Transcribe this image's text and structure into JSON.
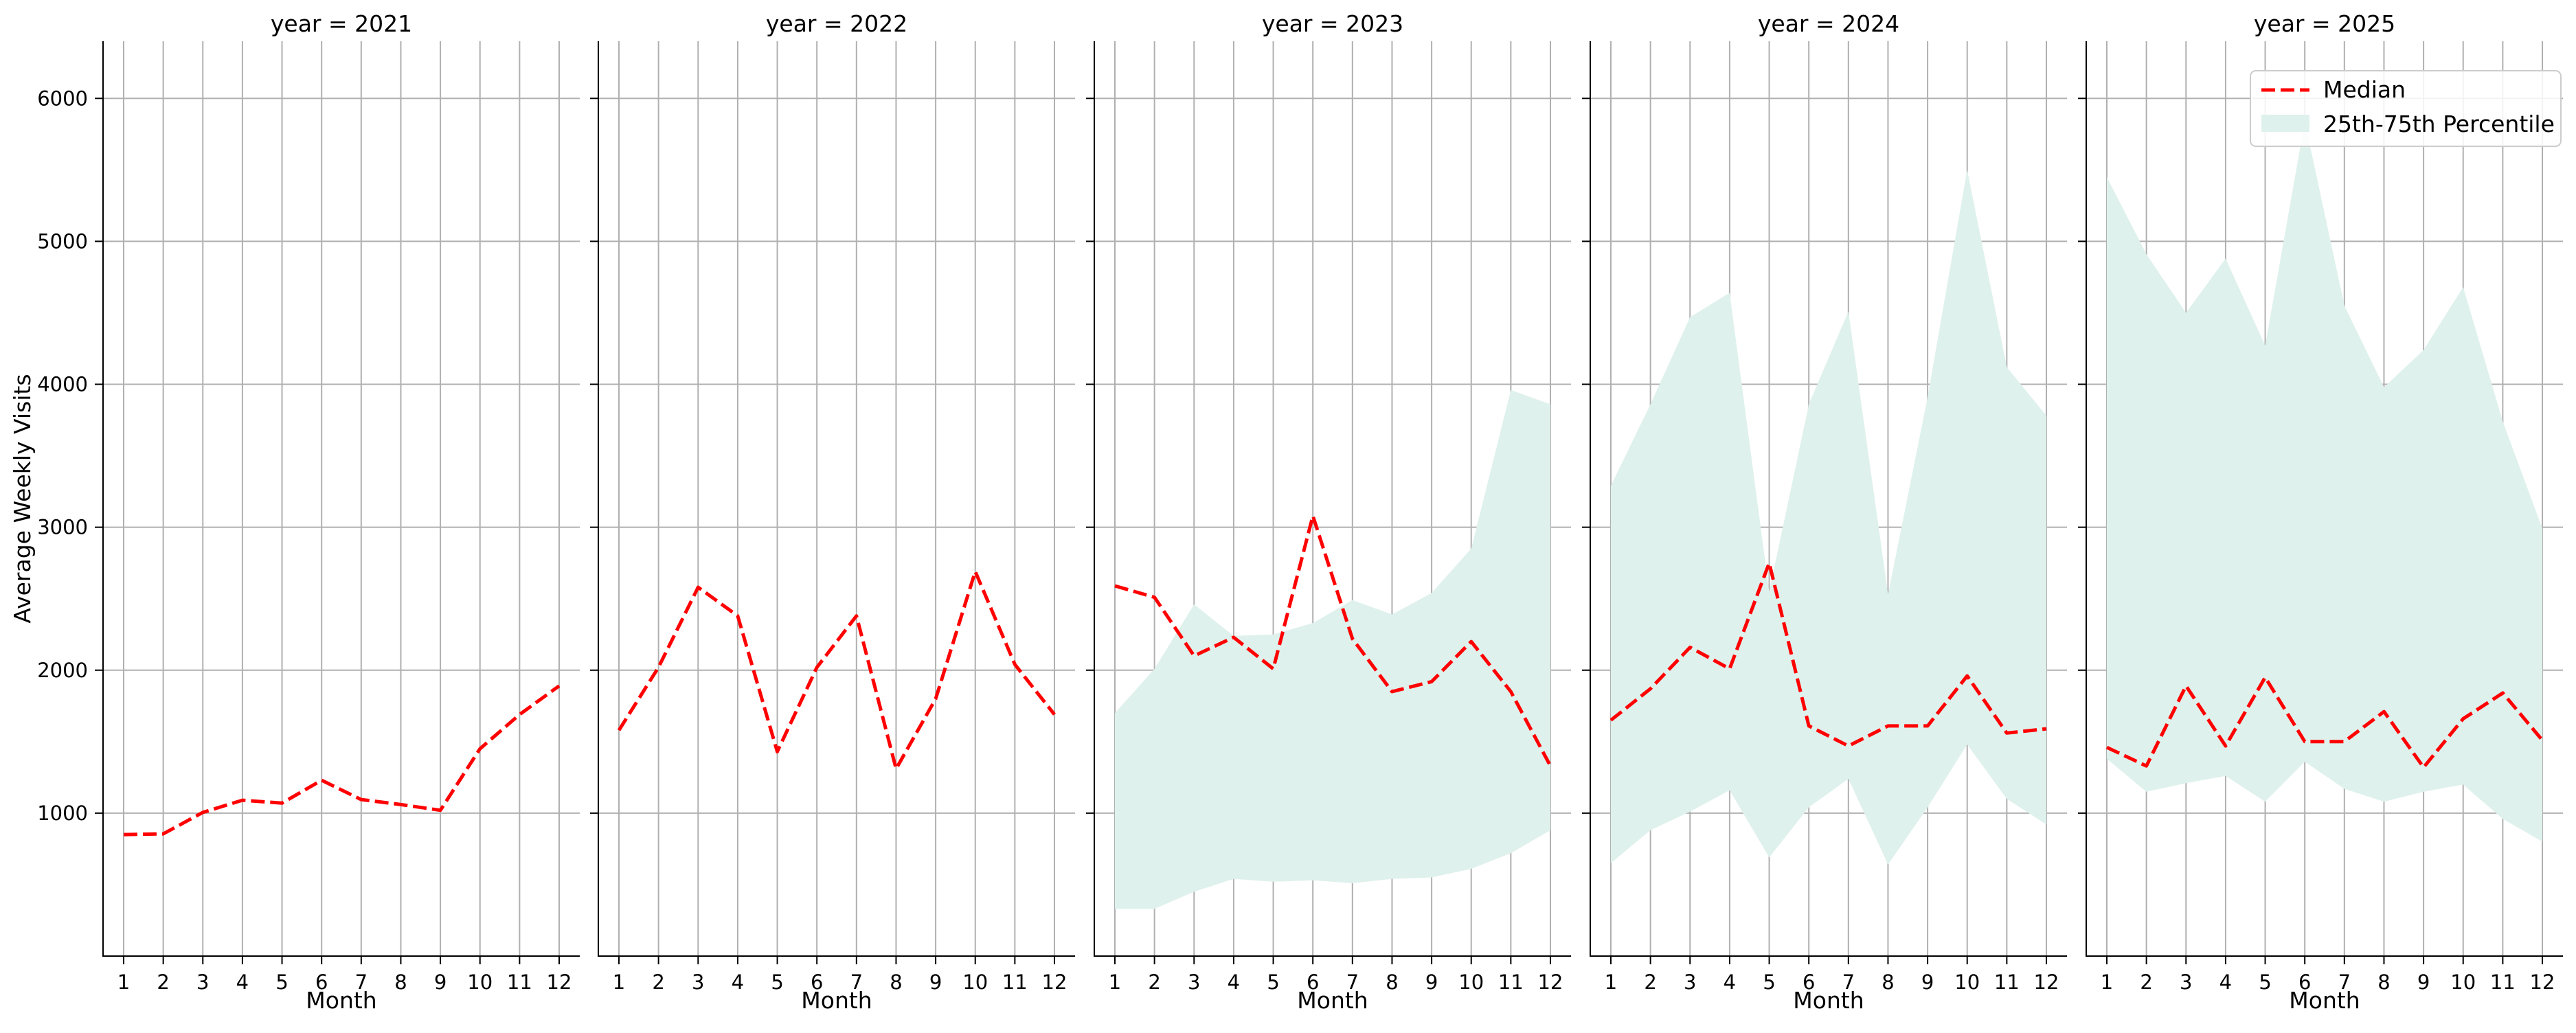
{
  "chart_data": {
    "type": "line",
    "ylabel": "Average Weekly Visits",
    "xlabel": "Month",
    "x": [
      1,
      2,
      3,
      4,
      5,
      6,
      7,
      8,
      9,
      10,
      11,
      12
    ],
    "ylim": [
      0,
      6400
    ],
    "yticks": [
      1000,
      2000,
      3000,
      4000,
      5000,
      6000
    ],
    "grid": true,
    "legend": {
      "placement": "top-right",
      "entries": [
        {
          "label": "Median",
          "style": "dashed-line",
          "color": "#ff0000"
        },
        {
          "label": "25th-75th Percentile",
          "style": "band",
          "color": "#dff1ec"
        }
      ]
    },
    "panels": [
      {
        "title": "year = 2021",
        "median": [
          850,
          855,
          1005,
          1090,
          1070,
          1230,
          1095,
          1060,
          1020,
          1450,
          1690,
          1890
        ],
        "q25": null,
        "q75": null
      },
      {
        "title": "year = 2022",
        "median": [
          1580,
          2020,
          2580,
          2380,
          1430,
          2020,
          2380,
          1310,
          1800,
          2690,
          2040,
          1690
        ],
        "q25": null,
        "q75": null
      },
      {
        "title": "year = 2023",
        "median": [
          2590,
          2510,
          2100,
          2230,
          2010,
          3080,
          2220,
          1850,
          1920,
          2200,
          1850,
          1330
        ],
        "q25": [
          330,
          330,
          450,
          540,
          520,
          530,
          510,
          540,
          550,
          610,
          720,
          880
        ],
        "q75": [
          1700,
          2010,
          2460,
          2240,
          2250,
          2330,
          2490,
          2390,
          2540,
          2850,
          3960,
          3860
        ]
      },
      {
        "title": "year = 2024",
        "median": [
          1650,
          1870,
          2160,
          2010,
          2750,
          1610,
          1470,
          1610,
          1610,
          1960,
          1560,
          1590
        ],
        "q25": [
          650,
          880,
          1010,
          1160,
          690,
          1040,
          1240,
          640,
          1040,
          1480,
          1100,
          920
        ],
        "q75": [
          3290,
          3860,
          4470,
          4640,
          2550,
          3860,
          4510,
          2530,
          3910,
          5500,
          4120,
          3780
        ]
      },
      {
        "title": "year = 2025",
        "median": [
          1460,
          1330,
          1890,
          1470,
          1950,
          1500,
          1500,
          1710,
          1320,
          1660,
          1840,
          1510
        ],
        "q25": [
          1380,
          1150,
          1210,
          1260,
          1080,
          1360,
          1170,
          1080,
          1150,
          1200,
          960,
          800
        ],
        "q75": [
          5450,
          4910,
          4500,
          4880,
          4270,
          5840,
          4550,
          3980,
          4240,
          4680,
          3740,
          2990
        ]
      }
    ]
  }
}
